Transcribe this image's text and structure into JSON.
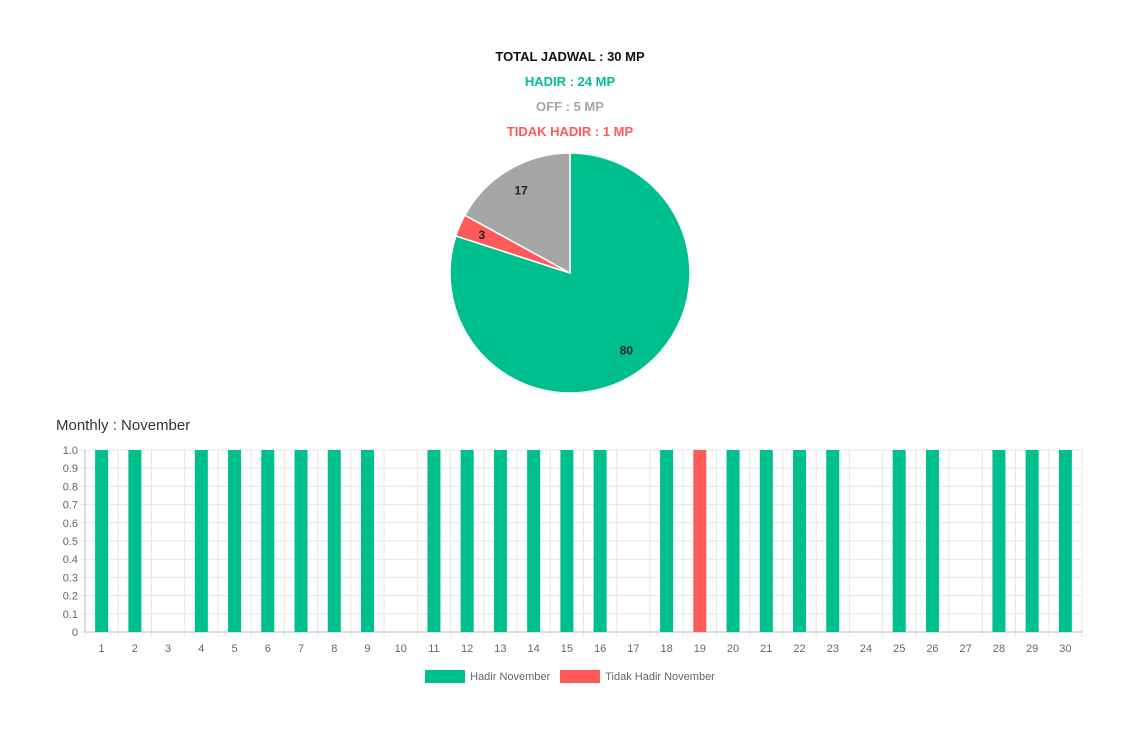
{
  "summary": {
    "total": "TOTAL JADWAL : 30 MP",
    "hadir": "HADIR : 24 MP",
    "off": "OFF : 5 MP",
    "tidak_hadir": "TIDAK HADIR : 1 MP"
  },
  "colors": {
    "hadir": "#00bf8f",
    "off": "#a6a6a6",
    "tidak_hadir": "#ff5a5a",
    "total": "#111111",
    "grid": "#e6e6e6",
    "axis_text": "#666666"
  },
  "monthly": {
    "title": "Monthly : November"
  },
  "chart_data": [
    {
      "type": "pie",
      "slices": [
        {
          "label": "80",
          "value": 80,
          "color": "#00bf8f"
        },
        {
          "label": "3",
          "value": 3,
          "color": "#ff5a5a"
        },
        {
          "label": "17",
          "value": 17,
          "color": "#a6a6a6"
        }
      ]
    },
    {
      "type": "bar",
      "title": "Monthly : November",
      "categories": [
        "1",
        "2",
        "3",
        "4",
        "5",
        "6",
        "7",
        "8",
        "9",
        "10",
        "11",
        "12",
        "13",
        "14",
        "15",
        "16",
        "17",
        "18",
        "19",
        "20",
        "21",
        "22",
        "23",
        "24",
        "25",
        "26",
        "27",
        "28",
        "29",
        "30"
      ],
      "series": [
        {
          "name": "Hadir November",
          "color": "#00bf8f",
          "values": [
            1,
            1,
            0,
            1,
            1,
            1,
            1,
            1,
            1,
            0,
            1,
            1,
            1,
            1,
            1,
            1,
            0,
            1,
            0,
            1,
            1,
            1,
            1,
            0,
            1,
            1,
            0,
            1,
            1,
            1
          ]
        },
        {
          "name": "Tidak Hadir November",
          "color": "#ff5a5a",
          "values": [
            0,
            0,
            0,
            0,
            0,
            0,
            0,
            0,
            0,
            0,
            0,
            0,
            0,
            0,
            0,
            0,
            0,
            0,
            1,
            0,
            0,
            0,
            0,
            0,
            0,
            0,
            0,
            0,
            0,
            0
          ]
        }
      ],
      "ylim": [
        0,
        1.0
      ],
      "yticks": [
        "0",
        "0.1",
        "0.2",
        "0.3",
        "0.4",
        "0.5",
        "0.6",
        "0.7",
        "0.8",
        "0.9",
        "1.0"
      ],
      "grid": true,
      "legend": "bottom"
    }
  ]
}
